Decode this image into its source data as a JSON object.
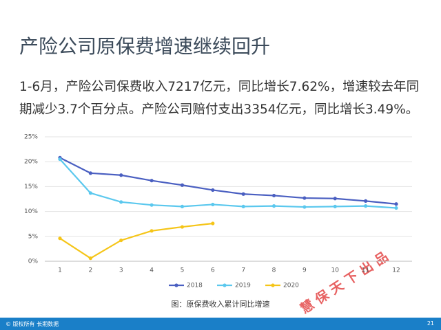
{
  "title": "产险公司原保费增速继续回升",
  "paragraph": "1-6月，产险公司保费收入7217亿元，同比增长7.62%，增速较去年同期减少3.7个百分点。产险公司赔付支出3354亿元，同比增长3.49%。",
  "watermark": "慧 保 天 下 出 品",
  "footer": {
    "left": "© 版权所有 长期数据",
    "page": "21"
  },
  "chart_data": {
    "type": "line",
    "caption": "图：原保费收入累计同比增速",
    "categories": [
      "1",
      "2",
      "3",
      "4",
      "5",
      "6",
      "7",
      "8",
      "9",
      "10",
      "11",
      "12"
    ],
    "series": [
      {
        "name": "2018",
        "color": "#4a5fc1",
        "values": [
          20.8,
          17.7,
          17.3,
          16.2,
          15.3,
          14.3,
          13.5,
          13.2,
          12.7,
          12.6,
          12.1,
          11.5
        ]
      },
      {
        "name": "2019",
        "color": "#5bc8ee",
        "values": [
          20.5,
          13.7,
          11.9,
          11.3,
          11.0,
          11.4,
          11.0,
          11.1,
          10.9,
          11.0,
          11.1,
          10.7
        ]
      },
      {
        "name": "2020",
        "color": "#f5c518",
        "values": [
          4.6,
          0.6,
          4.2,
          6.1,
          6.9,
          7.6,
          null,
          null,
          null,
          null,
          null,
          null
        ]
      }
    ],
    "ylim": [
      0,
      25
    ],
    "yticks": [
      {
        "value": 0,
        "label": "0%"
      },
      {
        "value": 5,
        "label": "5%"
      },
      {
        "value": 10,
        "label": "10%"
      },
      {
        "value": 15,
        "label": "15%"
      },
      {
        "value": 20,
        "label": "20%"
      },
      {
        "value": 25,
        "label": "25%"
      }
    ],
    "grid": true,
    "legend": "bottom"
  }
}
